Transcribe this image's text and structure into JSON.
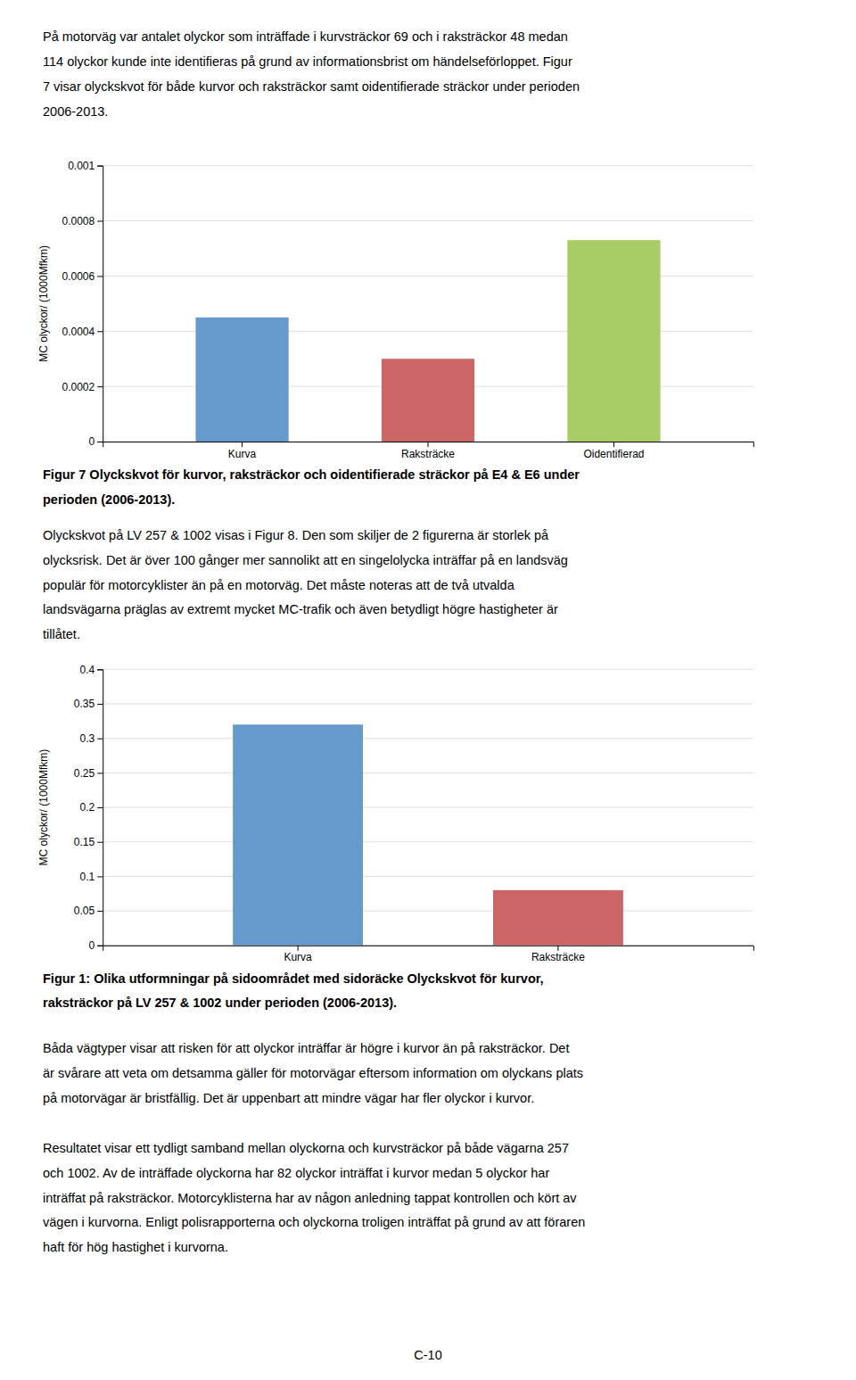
{
  "chart_data": [
    {
      "type": "bar",
      "categories": [
        "Kurva",
        "Raksträcke",
        "Oidentifierad"
      ],
      "values": [
        0.00045,
        0.0003,
        0.00073
      ],
      "colors": [
        "#6699CC",
        "#CC6666",
        "#AACC66"
      ],
      "ylabel": "MC olyckor/ (1000Mfkm)",
      "ylim": [
        0,
        0.001
      ],
      "yticks": [
        0,
        0.0002,
        0.0004,
        0.0006,
        0.0008,
        0.001
      ],
      "grid": true
    },
    {
      "type": "bar",
      "categories": [
        "Kurva",
        "Raksträcke"
      ],
      "values": [
        0.32,
        0.08
      ],
      "colors": [
        "#6699CC",
        "#CC6666"
      ],
      "ylabel": "MC olyckor/ (1000Mfkm)",
      "ylim": [
        0,
        0.4
      ],
      "yticks": [
        0,
        0.05,
        0.1,
        0.15,
        0.2,
        0.25,
        0.3,
        0.35,
        0.4
      ],
      "grid": true
    }
  ],
  "page_text_top": [
    "På motorväg var antalet olyckor som inträffade i kurvsträckor 69 och i raksträckor 48 medan",
    "114 olyckor kunde inte identifieras på grund av informationsbrist om händelseförloppet. Figur",
    "7 visar olyckskvot för både kurvor och raksträckor samt oidentifierade sträckor under perioden",
    "2006-2013."
  ],
  "caption1": [
    "Figur 7 Olyckskvot för kurvor, raksträckor och oidentifierade sträckor på E4 & E6 under",
    "perioden (2006-2013)."
  ],
  "page_text_middle": [
    "Olyckskvot på LV 257 & 1002 visas i Figur 8. Den som skiljer de 2 figurerna är storlek på",
    "olycksrisk. Det är över 100 gånger mer sannolikt att en singelolycka inträffar på en landsväg",
    "populär för motorcyklister än på en motorväg. Det måste noteras att de två utvalda",
    "landsvägarna präglas av extremt mycket MC-trafik och även betydligt högre hastigheter är",
    "tillåtet."
  ],
  "caption2": [
    "Figur 1: Olika utformningar på sidoområdet med sidoräcke Olyckskvot för kurvor,",
    "raksträckor på LV 257 & 1002 under perioden (2006-2013)."
  ],
  "page_text_bottom": [
    [
      "Båda vägtyper visar att risken för att olyckor inträffar är högre i kurvor än på raksträckor. Det",
      "är svårare att veta om detsamma gäller för motorvägar eftersom information om olyckans plats",
      "på motorvägar är bristfällig. Det är uppenbart att mindre vägar har fler olyckor i kurvor."
    ],
    [
      "Resultatet visar ett tydligt samband mellan olyckorna och kurvsträckor på både vägarna 257",
      "och 1002. Av de inträffade olyckorna har 82 olyckor inträffat i kurvor medan 5 olyckor har",
      "inträffat på raksträckor. Motorcyklisterna har av någon anledning tappat kontrollen och kört av",
      "vägen i kurvorna. Enligt polisrapporterna och olyckorna troligen inträffat på grund av att föraren",
      "haft för hög hastighet i kurvorna."
    ]
  ],
  "page_footer": "C-10"
}
